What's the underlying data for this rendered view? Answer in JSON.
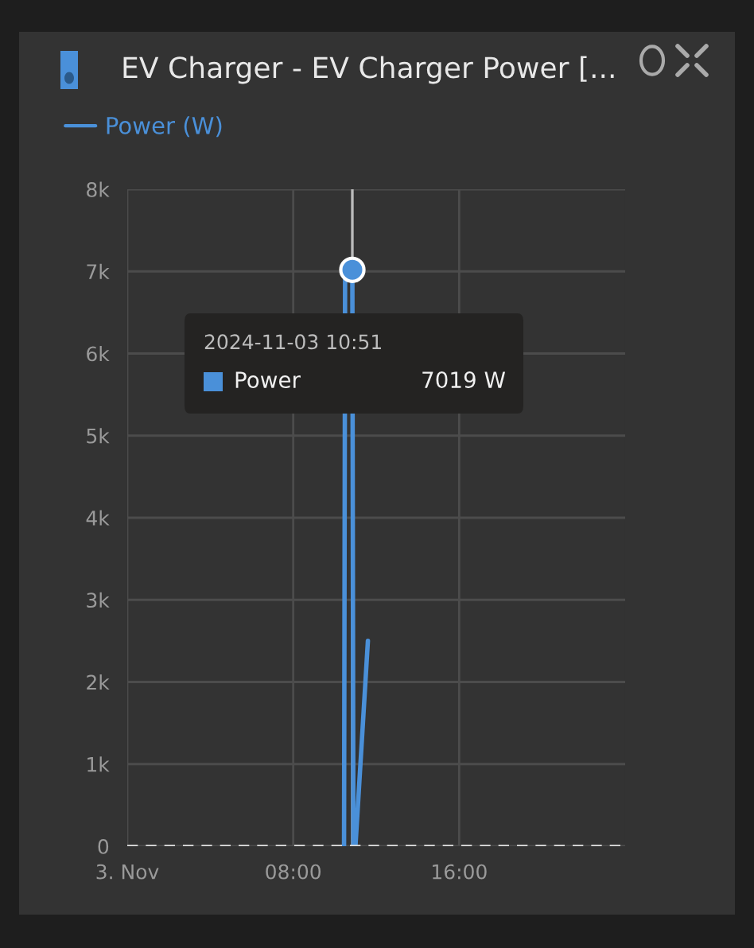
{
  "chart_data": {
    "type": "line",
    "title": "EV Charger - EV Charger Power [...",
    "x": [
      10.45,
      10.5,
      10.85,
      10.9,
      11.0,
      11.6
    ],
    "series": [
      {
        "name": "Power (W)",
        "color": "#4a90d9",
        "values": [
          0,
          6950,
          7019,
          0,
          0,
          2500
        ]
      },
      {
        "type": "scatter",
        "x": [
          10.85
        ],
        "color": "#4a90d9",
        "marker": "circle",
        "values": [
          7019
        ]
      }
    ],
    "xlim": [
      0,
      24
    ],
    "xticks": [
      {
        "value": 0,
        "label": "3. Nov"
      },
      {
        "value": 8,
        "label": "08:00"
      },
      {
        "value": 16,
        "label": "16:00"
      }
    ],
    "ylim": [
      0,
      8000
    ],
    "yticks": [
      {
        "value": 0,
        "label": "0"
      },
      {
        "value": 1000,
        "label": "1k"
      },
      {
        "value": 2000,
        "label": "2k"
      },
      {
        "value": 3000,
        "label": "3k"
      },
      {
        "value": 4000,
        "label": "4k"
      },
      {
        "value": 5000,
        "label": "5k"
      },
      {
        "value": 6000,
        "label": "6k"
      },
      {
        "value": 7000,
        "label": "7k"
      },
      {
        "value": 8000,
        "label": "8k"
      }
    ],
    "grid": true,
    "legend": "top left",
    "line_style": "solid",
    "ref_lines": [
      {
        "axis": "y",
        "value": 0,
        "label": null,
        "color": "#e0e0e0",
        "line_style": "dashed"
      },
      {
        "axis": "x",
        "value": 10.85,
        "label": null,
        "color": "#bbbbbb",
        "line_style": "solid"
      }
    ],
    "annotations": [
      "2024-11-03 10:51",
      "Power",
      "7019 W"
    ]
  }
}
